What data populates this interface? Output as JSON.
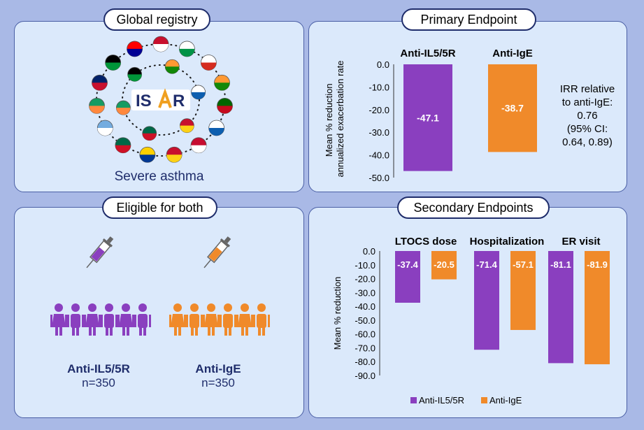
{
  "panels": {
    "registry": {
      "title": "Global registry",
      "caption": "Severe asthma",
      "logo_text_left": "IS",
      "logo_text_right": "R"
    },
    "primary": {
      "title": "Primary Endpoint"
    },
    "eligible": {
      "title": "Eligible for both",
      "arms": [
        {
          "name": "Anti-IL5/5R",
          "n": "n=350",
          "color": "#8a3fbf"
        },
        {
          "name": "Anti-IgE",
          "n": "n=350",
          "color": "#f08a2a"
        }
      ]
    },
    "secondary": {
      "title": "Secondary Endpoints"
    }
  },
  "irr_text": [
    "IRR relative",
    "to anti-IgE:",
    "0.76",
    "(95% CI:",
    "0.64, 0.89)"
  ],
  "colors": {
    "il5": "#8a3fbf",
    "ige": "#f08a2a"
  },
  "chart_data": [
    {
      "type": "bar",
      "ylabel": "Mean % reduction annualized exacerbation rate",
      "ylabel_lines": [
        "Mean % reduction",
        "annualized exacerbation rate"
      ],
      "ylim": [
        -50,
        0
      ],
      "yticks": [
        "0.0",
        "-10.0",
        "-20.0",
        "-30.0",
        "-40.0",
        "-50.0"
      ],
      "series": [
        {
          "name": "Anti-IL5/5R",
          "values": [
            -47.1
          ],
          "labels": [
            "-47.1"
          ]
        },
        {
          "name": "Anti-IgE",
          "values": [
            -38.7
          ],
          "labels": [
            "-38.7"
          ]
        }
      ]
    },
    {
      "type": "bar",
      "ylabel": "Mean % reduction",
      "ylim": [
        -90,
        0
      ],
      "yticks": [
        "0.0",
        "-10.0",
        "-20.0",
        "-30.0",
        "-40.0",
        "-50.0",
        "-60.0",
        "-70.0",
        "-80.0",
        "-90.0"
      ],
      "categories": [
        "LTOCS dose",
        "Hospitalization",
        "ER visit"
      ],
      "series": [
        {
          "name": "Anti-IL5/5R",
          "values": [
            -37.4,
            -71.4,
            -81.1
          ],
          "labels": [
            "-37.4",
            "-71.4",
            "-81.1"
          ]
        },
        {
          "name": "Anti-IgE",
          "values": [
            -20.5,
            -57.1,
            -81.9
          ],
          "labels": [
            "-20.5",
            "-57.1",
            "-81.9"
          ]
        }
      ],
      "legend": [
        "Anti-IL5/5R",
        "Anti-IgE"
      ],
      "legend_position": "bottom"
    }
  ]
}
